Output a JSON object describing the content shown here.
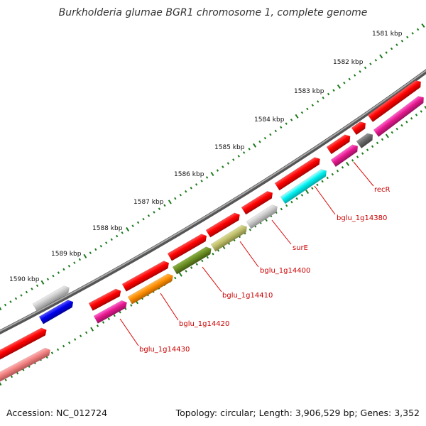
{
  "title": "Burkholderia glumae BGR1 chromosome 1, complete genome",
  "footer": {
    "accession": "Accession: NC_012724",
    "summary": "Topology: circular; Length: 3,906,529 bp; Genes: 3,352"
  },
  "colors": {
    "backbone": "#777777",
    "ticks": "#1a7a1a",
    "label_line": "#dd0000",
    "label_text": "#cc0000"
  },
  "ticks": [
    {
      "label": "1581 kbp"
    },
    {
      "label": "1582 kbp"
    },
    {
      "label": "1583 kbp"
    },
    {
      "label": "1584 kbp"
    },
    {
      "label": "1585 kbp"
    },
    {
      "label": "1586 kbp"
    },
    {
      "label": "1587 kbp"
    },
    {
      "label": "1588 kbp"
    },
    {
      "label": "1589 kbp"
    },
    {
      "label": "1590 kbp"
    }
  ],
  "gene_labels": [
    {
      "name": "recR"
    },
    {
      "name": "bglu_1g14380"
    },
    {
      "name": "surE"
    },
    {
      "name": "bglu_1g14400"
    },
    {
      "name": "bglu_1g14410"
    },
    {
      "name": "bglu_1g14420"
    },
    {
      "name": "bglu_1g14430"
    }
  ]
}
